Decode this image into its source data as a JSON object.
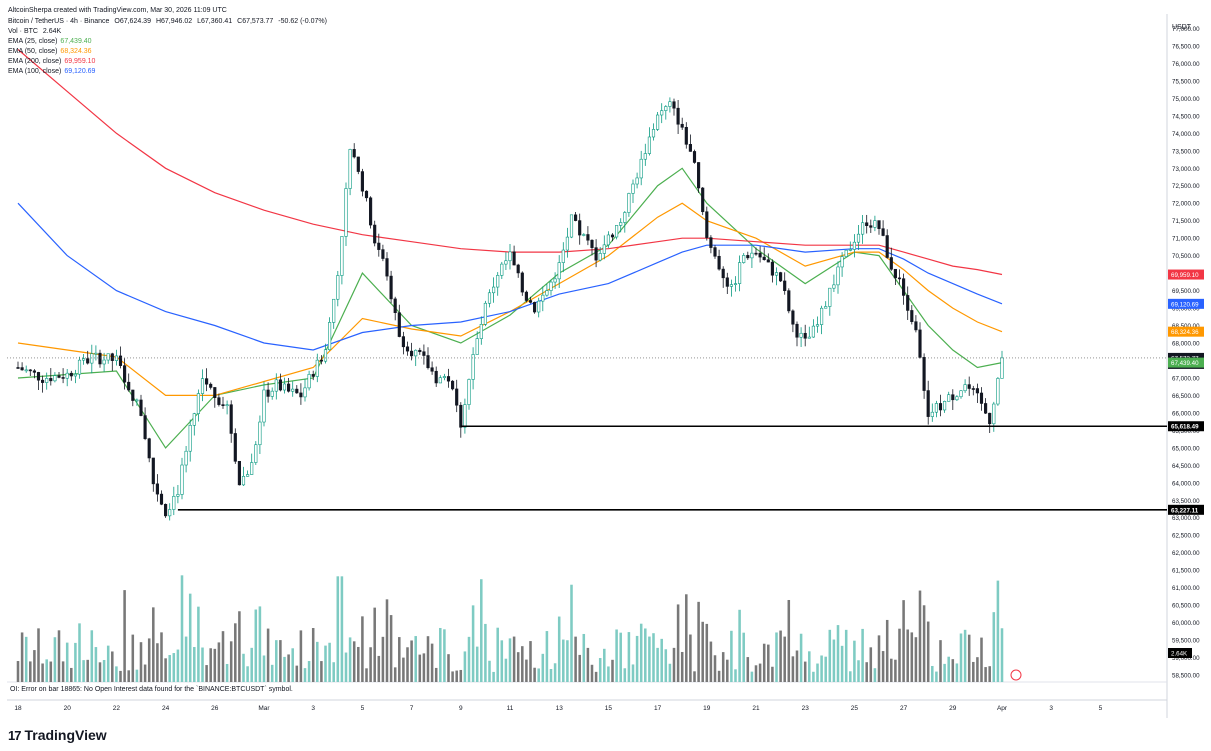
{
  "header": {
    "author_line": "AltcoinSherpa created with TradingView.com, Mar 30, 2026 11:09 UTC",
    "symbol": "Bitcoin / TetherUS · 4h · Binance",
    "ohlc": {
      "o_label": "O",
      "o": "67,624.39",
      "h_label": "H",
      "h": "67,946.02",
      "l_label": "L",
      "l": "67,360.41",
      "c_label": "C",
      "c": "67,573.77",
      "change": "-50.62 (-0.07%)"
    },
    "volume": {
      "label": "Vol · BTC",
      "value": "2.64K"
    },
    "emas": [
      {
        "label": "EMA (25, close)",
        "value": "67,439.40",
        "color": "#4caf50"
      },
      {
        "label": "EMA (50, close)",
        "value": "68,324.36",
        "color": "#ff9800"
      },
      {
        "label": "EMA (200, close)",
        "value": "69,959.10",
        "color": "#f23645"
      },
      {
        "label": "EMA (100, close)",
        "value": "69,120.69",
        "color": "#2962ff"
      }
    ]
  },
  "currency": "USDT",
  "oi_error": "OI: Error on bar 18865: No Open Interest data found for the `BINANCE:BTCUSDT` symbol.",
  "brand": {
    "logo": "17",
    "name": "TradingView"
  },
  "chart_data": {
    "type": "candlestick",
    "timeframe": "4h",
    "y_axis": {
      "min": 58300,
      "max": 77300,
      "ticks": [
        58500,
        59000,
        59500,
        60000,
        60500,
        61000,
        61500,
        62000,
        62500,
        63000,
        63500,
        64000,
        64500,
        65000,
        65500,
        66000,
        66500,
        67000,
        67500,
        68000,
        68500,
        69000,
        69500,
        70000,
        70500,
        71000,
        71500,
        72000,
        72500,
        73000,
        73500,
        74000,
        74500,
        75000,
        75500,
        76000,
        76500,
        77000
      ],
      "tick_labels": [
        "58,500.00",
        "59,000.00",
        "59,500.00",
        "60,000.00",
        "60,500.00",
        "61,000.00",
        "61,500.00",
        "62,000.00",
        "62,500.00",
        "63,000.00",
        "63,500.00",
        "64,000.00",
        "64,500.00",
        "65,000.00",
        "65,500.00",
        "66,000.00",
        "66,500.00",
        "67,000.00",
        "67,500.00",
        "68,000.00",
        "68,500.00",
        "69,000.00",
        "69,500.00",
        "70,000.00",
        "70,500.00",
        "71,000.00",
        "71,500.00",
        "72,000.00",
        "72,500.00",
        "73,000.00",
        "73,500.00",
        "74,000.00",
        "74,500.00",
        "75,000.00",
        "75,500.00",
        "76,000.00",
        "76,500.00",
        "77,000.00"
      ]
    },
    "x_axis": {
      "labels": [
        "18",
        "20",
        "22",
        "24",
        "26",
        "Mar",
        "3",
        "5",
        "7",
        "9",
        "11",
        "13",
        "15",
        "17",
        "19",
        "21",
        "23",
        "25",
        "27",
        "29",
        "Apr",
        "3",
        "5"
      ],
      "day_index": [
        0,
        2,
        4,
        6,
        8,
        10,
        12,
        14,
        16,
        18,
        20,
        22,
        24,
        26,
        28,
        30,
        32,
        34,
        36,
        38,
        40,
        42,
        44
      ]
    },
    "price_points": [
      [
        0,
        67300
      ],
      [
        1,
        67000
      ],
      [
        2,
        67100
      ],
      [
        3,
        67600
      ],
      [
        4,
        67500
      ],
      [
        5,
        66000
      ],
      [
        5.5,
        64000
      ],
      [
        6,
        63200
      ],
      [
        6.5,
        63800
      ],
      [
        7,
        65500
      ],
      [
        7.5,
        67000
      ],
      [
        8,
        66500
      ],
      [
        8.5,
        66200
      ],
      [
        9,
        64000
      ],
      [
        9.5,
        64500
      ],
      [
        10,
        66500
      ],
      [
        10.5,
        66800
      ],
      [
        11,
        66600
      ],
      [
        11.5,
        66500
      ],
      [
        12,
        67200
      ],
      [
        12.5,
        67800
      ],
      [
        13,
        70000
      ],
      [
        13.5,
        73500
      ],
      [
        14,
        72500
      ],
      [
        14.5,
        71000
      ],
      [
        15,
        70000
      ],
      [
        15.5,
        68200
      ],
      [
        16,
        67800
      ],
      [
        16.5,
        67500
      ],
      [
        17,
        67000
      ],
      [
        17.5,
        67000
      ],
      [
        18,
        65700
      ],
      [
        18.5,
        67600
      ],
      [
        19,
        69000
      ],
      [
        19.5,
        70000
      ],
      [
        20,
        70500
      ],
      [
        20.5,
        69500
      ],
      [
        21,
        69000
      ],
      [
        21.5,
        69500
      ],
      [
        22,
        70200
      ],
      [
        22.5,
        71500
      ],
      [
        23,
        71000
      ],
      [
        23.5,
        70500
      ],
      [
        24,
        71000
      ],
      [
        24.5,
        71500
      ],
      [
        25,
        72500
      ],
      [
        25.5,
        73500
      ],
      [
        26,
        74500
      ],
      [
        26.5,
        74800
      ],
      [
        27,
        74200
      ],
      [
        27.5,
        73000
      ],
      [
        28,
        71000
      ],
      [
        28.5,
        70200
      ],
      [
        29,
        69500
      ],
      [
        29.5,
        70500
      ],
      [
        30,
        70600
      ],
      [
        30.5,
        70200
      ],
      [
        31,
        69800
      ],
      [
        31.5,
        68500
      ],
      [
        32,
        68000
      ],
      [
        32.5,
        68500
      ],
      [
        33,
        69500
      ],
      [
        33.5,
        70300
      ],
      [
        34,
        71000
      ],
      [
        34.5,
        71500
      ],
      [
        35,
        71300
      ],
      [
        35.5,
        70200
      ],
      [
        36,
        69500
      ],
      [
        36.5,
        68300
      ],
      [
        37,
        66000
      ],
      [
        37.5,
        66200
      ],
      [
        38,
        66500
      ],
      [
        38.5,
        66800
      ],
      [
        39,
        66400
      ],
      [
        39.5,
        65800
      ],
      [
        40,
        67573.77
      ]
    ],
    "ema_25": [
      [
        0,
        67000
      ],
      [
        4,
        67200
      ],
      [
        6,
        65000
      ],
      [
        8,
        66500
      ],
      [
        10,
        66800
      ],
      [
        12,
        67000
      ],
      [
        14,
        70000
      ],
      [
        16,
        68500
      ],
      [
        18,
        68000
      ],
      [
        20,
        68800
      ],
      [
        22,
        70000
      ],
      [
        24,
        70800
      ],
      [
        26,
        72500
      ],
      [
        27,
        73000
      ],
      [
        28,
        72000
      ],
      [
        30,
        70700
      ],
      [
        32,
        69700
      ],
      [
        34,
        70600
      ],
      [
        35,
        70500
      ],
      [
        36,
        69500
      ],
      [
        37,
        68500
      ],
      [
        38,
        67800
      ],
      [
        39,
        67300
      ],
      [
        40,
        67439.4
      ]
    ],
    "ema_50": [
      [
        0,
        68000
      ],
      [
        4,
        67600
      ],
      [
        6,
        66500
      ],
      [
        8,
        66500
      ],
      [
        10,
        66900
      ],
      [
        12,
        67300
      ],
      [
        14,
        68700
      ],
      [
        16,
        68400
      ],
      [
        18,
        68200
      ],
      [
        20,
        68900
      ],
      [
        22,
        69700
      ],
      [
        24,
        70500
      ],
      [
        26,
        71600
      ],
      [
        27,
        72000
      ],
      [
        28,
        71500
      ],
      [
        30,
        71000
      ],
      [
        32,
        70200
      ],
      [
        34,
        70600
      ],
      [
        35,
        70600
      ],
      [
        36,
        70100
      ],
      [
        37,
        69500
      ],
      [
        38,
        69000
      ],
      [
        39,
        68600
      ],
      [
        40,
        68324.36
      ]
    ],
    "ema_100": [
      [
        0,
        72000
      ],
      [
        2,
        70500
      ],
      [
        4,
        69500
      ],
      [
        6,
        68900
      ],
      [
        8,
        68500
      ],
      [
        10,
        68000
      ],
      [
        12,
        67800
      ],
      [
        14,
        68300
      ],
      [
        16,
        68500
      ],
      [
        18,
        68600
      ],
      [
        20,
        68900
      ],
      [
        22,
        69400
      ],
      [
        24,
        69700
      ],
      [
        26,
        70300
      ],
      [
        27,
        70600
      ],
      [
        28,
        70800
      ],
      [
        30,
        70800
      ],
      [
        32,
        70600
      ],
      [
        34,
        70700
      ],
      [
        35,
        70700
      ],
      [
        36,
        70400
      ],
      [
        37,
        70000
      ],
      [
        38,
        69700
      ],
      [
        39,
        69400
      ],
      [
        40,
        69120.69
      ]
    ],
    "ema_200": [
      [
        0,
        76400
      ],
      [
        2,
        75200
      ],
      [
        4,
        74000
      ],
      [
        6,
        73000
      ],
      [
        8,
        72300
      ],
      [
        10,
        71800
      ],
      [
        12,
        71400
      ],
      [
        14,
        71100
      ],
      [
        16,
        70900
      ],
      [
        18,
        70700
      ],
      [
        20,
        70600
      ],
      [
        22,
        70600
      ],
      [
        24,
        70700
      ],
      [
        26,
        70900
      ],
      [
        27,
        71000
      ],
      [
        28,
        71000
      ],
      [
        30,
        70900
      ],
      [
        32,
        70800
      ],
      [
        34,
        70800
      ],
      [
        35,
        70800
      ],
      [
        36,
        70600
      ],
      [
        37,
        70400
      ],
      [
        38,
        70200
      ],
      [
        39,
        70100
      ],
      [
        40,
        69959.1
      ]
    ],
    "support_lines": [
      {
        "price": 65618.49,
        "label": "65,618.49",
        "from_day": 18
      },
      {
        "price": 63227.11,
        "label": "63,227.11",
        "from_day": 6.5
      }
    ],
    "price_labels": [
      {
        "price": 69959.1,
        "label": "69,959.10",
        "color": "#f23645"
      },
      {
        "price": 69120.69,
        "label": "69,120.69",
        "color": "#2962ff"
      },
      {
        "price": 68324.36,
        "label": "68,324.36",
        "color": "#ff9800"
      },
      {
        "price": 67573.77,
        "label": "67,573.77",
        "sub": "50:28",
        "color": "#131722"
      },
      {
        "price": 67439.4,
        "label": "67,439.40",
        "color": "#4caf50"
      }
    ],
    "volume_label": {
      "value": "2.64K"
    },
    "colors": {
      "up": "#089981",
      "down": "#131722",
      "vol_up": "#7ecbc3",
      "vol_down": "#787878"
    }
  }
}
